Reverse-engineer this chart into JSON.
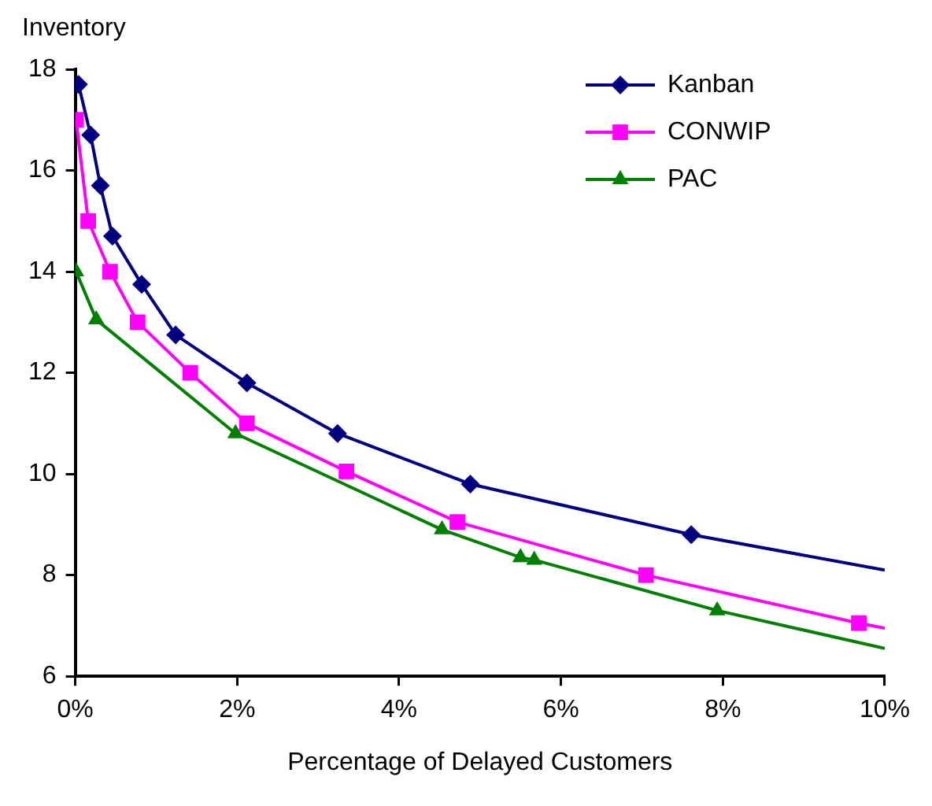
{
  "chart_data": {
    "type": "line",
    "xlabel": "Percentage of Delayed Customers",
    "ylabel": "Inventory",
    "xlim": [
      0,
      10
    ],
    "xticks": [
      {
        "value": 0,
        "label": "0%"
      },
      {
        "value": 2,
        "label": "2%"
      },
      {
        "value": 4,
        "label": "4%"
      },
      {
        "value": 6,
        "label": "6%"
      },
      {
        "value": 8,
        "label": "8%"
      },
      {
        "value": 10,
        "label": "10%"
      }
    ],
    "ylim": [
      6,
      18
    ],
    "yticks": [
      6,
      8,
      10,
      12,
      14,
      16,
      18
    ],
    "grid": false,
    "legend": "top right",
    "line_style": "solid",
    "series": [
      {
        "name": "Kanban",
        "color": "#000080",
        "marker": "diamond",
        "x": [
          0.04,
          0.19,
          0.31,
          0.46,
          0.82,
          1.24,
          2.12,
          3.24,
          4.88,
          7.61,
          10
        ],
        "values": [
          17.7,
          16.7,
          15.7,
          14.7,
          13.75,
          12.75,
          11.8,
          10.8,
          9.8,
          8.8,
          8.1
        ]
      },
      {
        "name": "CONWIP",
        "color": "#ff00ff",
        "marker": "square",
        "x": [
          0.01,
          0.16,
          0.43,
          0.77,
          1.42,
          2.12,
          3.35,
          4.72,
          7.05,
          9.68,
          10
        ],
        "values": [
          17,
          15,
          14,
          13,
          12,
          11,
          10.05,
          9.05,
          8,
          7.05,
          6.95
        ]
      },
      {
        "name": "PAC",
        "color": "#008000",
        "marker": "triangle",
        "x": [
          0.01,
          0.26,
          1.98,
          4.53,
          5.5,
          5.67,
          7.93,
          10
        ],
        "values": [
          14,
          13.05,
          10.8,
          8.9,
          8.35,
          8.3,
          7.3,
          6.55
        ]
      }
    ]
  }
}
